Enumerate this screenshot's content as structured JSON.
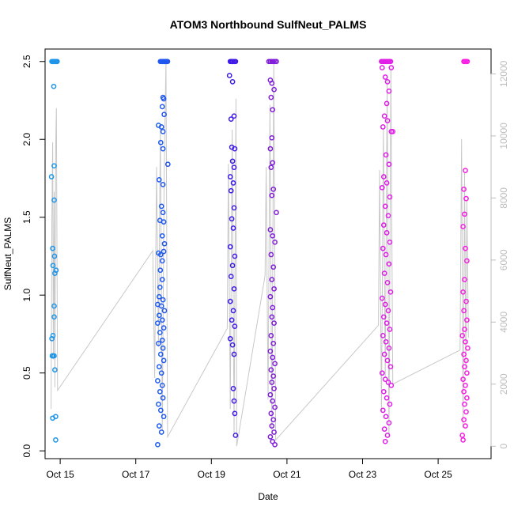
{
  "chart_data": {
    "type": "scatter",
    "title": "ATOM3 Northbound SulfNeut_PALMS",
    "xlabel": "Date",
    "ylabel": "SulfNeut_PALMS",
    "xlim": [
      14.6,
      26.4
    ],
    "ylim": [
      -0.05,
      2.58
    ],
    "y_ticks": [
      0.0,
      0.5,
      1.0,
      1.5,
      2.0,
      2.5
    ],
    "y_tick_labels": [
      "0.0",
      "0.5",
      "1.0",
      "1.5",
      "2.0",
      "2.5"
    ],
    "x_ticks": [
      15,
      17,
      19,
      21,
      23,
      25
    ],
    "x_tick_labels": [
      "Oct 15",
      "Oct 17",
      "Oct 19",
      "Oct 21",
      "Oct 23",
      "Oct 25"
    ],
    "y2_label": "",
    "y2_lim": [
      -400,
      12800
    ],
    "y2_ticks": [
      0,
      2000,
      4000,
      6000,
      8000,
      10000,
      12000
    ],
    "y2_tick_labels": [
      "0",
      "2000",
      "4000",
      "6000",
      "8000",
      "10000",
      "12000"
    ],
    "altitude_color": "#c8c8c8",
    "altitude_path": [
      [
        14.76,
        1200
      ],
      [
        14.78,
        7300
      ],
      [
        14.8,
        9800
      ],
      [
        14.82,
        2800
      ],
      [
        14.84,
        8200
      ],
      [
        14.86,
        1900
      ],
      [
        14.88,
        9600
      ],
      [
        14.9,
        10900
      ],
      [
        14.93,
        1800
      ],
      [
        17.45,
        6300
      ],
      [
        17.5,
        2200
      ],
      [
        17.55,
        9000
      ],
      [
        17.6,
        3200
      ],
      [
        17.65,
        10300
      ],
      [
        17.7,
        500
      ],
      [
        17.75,
        8800
      ],
      [
        17.8,
        12400
      ],
      [
        17.84,
        300
      ],
      [
        19.42,
        3800
      ],
      [
        19.45,
        9100
      ],
      [
        19.5,
        1200
      ],
      [
        19.55,
        10200
      ],
      [
        19.6,
        400
      ],
      [
        19.65,
        11200
      ],
      [
        19.67,
        0
      ],
      [
        20.42,
        5500
      ],
      [
        20.45,
        9000
      ],
      [
        20.5,
        1500
      ],
      [
        20.55,
        11000
      ],
      [
        20.6,
        300
      ],
      [
        20.65,
        12400
      ],
      [
        20.7,
        200
      ],
      [
        23.42,
        3900
      ],
      [
        23.45,
        8900
      ],
      [
        23.5,
        1100
      ],
      [
        23.55,
        10200
      ],
      [
        23.6,
        2200
      ],
      [
        23.65,
        11800
      ],
      [
        23.7,
        300
      ],
      [
        23.75,
        12200
      ],
      [
        23.8,
        2000
      ],
      [
        25.58,
        3100
      ],
      [
        25.62,
        9900
      ],
      [
        25.66,
        600
      ],
      [
        25.7,
        8800
      ],
      [
        25.73,
        2400
      ],
      [
        25.76,
        7900
      ],
      [
        25.8,
        3500
      ]
    ],
    "color_scale": {
      "stops": [
        [
          14.6,
          "#1e9be8"
        ],
        [
          17.6,
          "#1e5df0"
        ],
        [
          19.5,
          "#3b1be8"
        ],
        [
          20.5,
          "#7d1ed8"
        ],
        [
          23.6,
          "#e01ee8"
        ],
        [
          26.4,
          "#ff1ee0"
        ]
      ]
    },
    "points": [
      [
        14.78,
        2.5
      ],
      [
        14.8,
        2.5
      ],
      [
        14.82,
        2.5
      ],
      [
        14.84,
        2.5
      ],
      [
        14.86,
        2.5
      ],
      [
        14.88,
        2.5
      ],
      [
        14.9,
        2.5
      ],
      [
        14.92,
        2.5
      ],
      [
        14.83,
        2.34
      ],
      [
        14.77,
        1.76
      ],
      [
        14.84,
        1.83
      ],
      [
        14.84,
        1.61
      ],
      [
        14.8,
        1.3
      ],
      [
        14.85,
        1.25
      ],
      [
        14.81,
        1.19
      ],
      [
        14.89,
        1.16
      ],
      [
        14.86,
        1.14
      ],
      [
        14.84,
        0.93
      ],
      [
        14.84,
        0.86
      ],
      [
        14.78,
        0.72
      ],
      [
        14.81,
        0.74
      ],
      [
        14.79,
        0.61
      ],
      [
        14.81,
        0.61
      ],
      [
        14.84,
        0.61
      ],
      [
        14.86,
        0.52
      ],
      [
        14.8,
        0.21
      ],
      [
        14.88,
        0.22
      ],
      [
        14.88,
        0.07
      ],
      [
        17.65,
        2.5
      ],
      [
        17.68,
        2.5
      ],
      [
        17.7,
        2.5
      ],
      [
        17.72,
        2.5
      ],
      [
        17.74,
        2.5
      ],
      [
        17.76,
        2.5
      ],
      [
        17.78,
        2.5
      ],
      [
        17.8,
        2.5
      ],
      [
        17.82,
        2.5
      ],
      [
        17.84,
        2.5
      ],
      [
        17.72,
        2.27
      ],
      [
        17.74,
        2.26
      ],
      [
        17.7,
        2.21
      ],
      [
        17.75,
        2.16
      ],
      [
        17.6,
        2.09
      ],
      [
        17.68,
        2.08
      ],
      [
        17.72,
        2.05
      ],
      [
        17.66,
        1.98
      ],
      [
        17.72,
        1.94
      ],
      [
        17.85,
        1.84
      ],
      [
        17.62,
        1.74
      ],
      [
        17.72,
        1.71
      ],
      [
        17.68,
        1.57
      ],
      [
        17.72,
        1.53
      ],
      [
        17.64,
        1.48
      ],
      [
        17.74,
        1.47
      ],
      [
        17.7,
        1.38
      ],
      [
        17.76,
        1.33
      ],
      [
        17.74,
        1.28
      ],
      [
        17.6,
        1.27
      ],
      [
        17.66,
        1.26
      ],
      [
        17.7,
        1.22
      ],
      [
        17.65,
        1.16
      ],
      [
        17.7,
        1.1
      ],
      [
        17.64,
        1.05
      ],
      [
        17.62,
        0.99
      ],
      [
        17.72,
        0.97
      ],
      [
        17.58,
        0.94
      ],
      [
        17.68,
        0.93
      ],
      [
        17.76,
        0.9
      ],
      [
        17.62,
        0.87
      ],
      [
        17.7,
        0.84
      ],
      [
        17.58,
        0.82
      ],
      [
        17.74,
        0.79
      ],
      [
        17.64,
        0.76
      ],
      [
        17.7,
        0.71
      ],
      [
        17.6,
        0.69
      ],
      [
        17.72,
        0.66
      ],
      [
        17.66,
        0.62
      ],
      [
        17.74,
        0.58
      ],
      [
        17.62,
        0.54
      ],
      [
        17.68,
        0.5
      ],
      [
        17.58,
        0.45
      ],
      [
        17.7,
        0.42
      ],
      [
        17.64,
        0.38
      ],
      [
        17.72,
        0.34
      ],
      [
        17.6,
        0.3
      ],
      [
        17.66,
        0.26
      ],
      [
        17.74,
        0.22
      ],
      [
        17.62,
        0.16
      ],
      [
        17.68,
        0.12
      ],
      [
        17.58,
        0.04
      ],
      [
        19.5,
        2.5
      ],
      [
        19.53,
        2.5
      ],
      [
        19.55,
        2.5
      ],
      [
        19.57,
        2.5
      ],
      [
        19.6,
        2.5
      ],
      [
        19.62,
        2.5
      ],
      [
        19.64,
        2.5
      ],
      [
        19.48,
        2.41
      ],
      [
        19.56,
        2.37
      ],
      [
        19.52,
        2.13
      ],
      [
        19.6,
        2.15
      ],
      [
        19.54,
        1.95
      ],
      [
        19.62,
        1.94
      ],
      [
        19.56,
        1.86
      ],
      [
        19.6,
        1.82
      ],
      [
        19.5,
        1.76
      ],
      [
        19.58,
        1.72
      ],
      [
        19.52,
        1.67
      ],
      [
        19.6,
        1.56
      ],
      [
        19.54,
        1.49
      ],
      [
        19.58,
        1.43
      ],
      [
        19.5,
        1.31
      ],
      [
        19.62,
        1.25
      ],
      [
        19.56,
        1.19
      ],
      [
        19.52,
        1.12
      ],
      [
        19.6,
        1.04
      ],
      [
        19.5,
        0.96
      ],
      [
        19.58,
        0.9
      ],
      [
        19.54,
        0.84
      ],
      [
        19.62,
        0.8
      ],
      [
        19.5,
        0.72
      ],
      [
        19.56,
        0.68
      ],
      [
        19.6,
        0.62
      ],
      [
        19.58,
        0.4
      ],
      [
        19.6,
        0.32
      ],
      [
        19.62,
        0.24
      ],
      [
        19.64,
        0.1
      ],
      [
        20.52,
        2.5
      ],
      [
        20.56,
        2.5
      ],
      [
        20.6,
        2.5
      ],
      [
        20.64,
        2.5
      ],
      [
        20.68,
        2.5
      ],
      [
        20.72,
        2.5
      ],
      [
        20.56,
        2.38
      ],
      [
        20.6,
        2.36
      ],
      [
        20.66,
        2.32
      ],
      [
        20.58,
        2.27
      ],
      [
        20.62,
        2.19
      ],
      [
        20.6,
        2.01
      ],
      [
        20.56,
        1.94
      ],
      [
        20.62,
        1.85
      ],
      [
        20.58,
        1.82
      ],
      [
        20.64,
        1.68
      ],
      [
        20.6,
        1.64
      ],
      [
        20.72,
        1.53
      ],
      [
        20.56,
        1.42
      ],
      [
        20.62,
        1.38
      ],
      [
        20.68,
        1.34
      ],
      [
        20.58,
        1.26
      ],
      [
        20.64,
        1.18
      ],
      [
        20.6,
        1.1
      ],
      [
        20.66,
        1.04
      ],
      [
        20.56,
        0.99
      ],
      [
        20.62,
        0.92
      ],
      [
        20.6,
        0.86
      ],
      [
        20.66,
        0.82
      ],
      [
        20.58,
        0.74
      ],
      [
        20.64,
        0.69
      ],
      [
        20.56,
        0.64
      ],
      [
        20.62,
        0.6
      ],
      [
        20.68,
        0.56
      ],
      [
        20.58,
        0.52
      ],
      [
        20.64,
        0.48
      ],
      [
        20.6,
        0.44
      ],
      [
        20.66,
        0.4
      ],
      [
        20.56,
        0.36
      ],
      [
        20.62,
        0.32
      ],
      [
        20.68,
        0.28
      ],
      [
        20.58,
        0.24
      ],
      [
        20.64,
        0.2
      ],
      [
        20.6,
        0.16
      ],
      [
        20.66,
        0.12
      ],
      [
        20.56,
        0.09
      ],
      [
        20.62,
        0.06
      ],
      [
        20.68,
        0.04
      ],
      [
        23.5,
        2.5
      ],
      [
        23.53,
        2.5
      ],
      [
        23.56,
        2.5
      ],
      [
        23.59,
        2.5
      ],
      [
        23.62,
        2.5
      ],
      [
        23.65,
        2.5
      ],
      [
        23.68,
        2.5
      ],
      [
        23.71,
        2.5
      ],
      [
        23.74,
        2.5
      ],
      [
        23.52,
        2.46
      ],
      [
        23.76,
        2.46
      ],
      [
        23.6,
        2.4
      ],
      [
        23.66,
        2.37
      ],
      [
        23.7,
        2.31
      ],
      [
        23.64,
        2.23
      ],
      [
        23.58,
        2.15
      ],
      [
        23.66,
        2.12
      ],
      [
        23.54,
        2.08
      ],
      [
        23.76,
        2.05
      ],
      [
        23.8,
        2.05
      ],
      [
        23.62,
        1.9
      ],
      [
        23.7,
        1.84
      ],
      [
        23.56,
        1.76
      ],
      [
        23.64,
        1.72
      ],
      [
        23.52,
        1.69
      ],
      [
        23.72,
        1.63
      ],
      [
        23.6,
        1.57
      ],
      [
        23.68,
        1.51
      ],
      [
        23.56,
        1.45
      ],
      [
        23.64,
        1.4
      ],
      [
        23.72,
        1.34
      ],
      [
        23.54,
        1.3
      ],
      [
        23.62,
        1.26
      ],
      [
        23.7,
        1.2
      ],
      [
        23.58,
        1.14
      ],
      [
        23.66,
        1.08
      ],
      [
        23.74,
        1.02
      ],
      [
        23.52,
        0.98
      ],
      [
        23.6,
        0.94
      ],
      [
        23.68,
        0.9
      ],
      [
        23.56,
        0.86
      ],
      [
        23.64,
        0.82
      ],
      [
        23.72,
        0.78
      ],
      [
        23.54,
        0.74
      ],
      [
        23.62,
        0.7
      ],
      [
        23.7,
        0.66
      ],
      [
        23.58,
        0.62
      ],
      [
        23.66,
        0.58
      ],
      [
        23.74,
        0.54
      ],
      [
        23.52,
        0.5
      ],
      [
        23.6,
        0.46
      ],
      [
        23.68,
        0.44
      ],
      [
        23.76,
        0.42
      ],
      [
        23.56,
        0.38
      ],
      [
        23.64,
        0.34
      ],
      [
        23.72,
        0.3
      ],
      [
        23.54,
        0.26
      ],
      [
        23.62,
        0.22
      ],
      [
        23.7,
        0.18
      ],
      [
        23.58,
        0.14
      ],
      [
        23.66,
        0.1
      ],
      [
        23.6,
        0.06
      ],
      [
        25.68,
        2.5
      ],
      [
        25.71,
        2.5
      ],
      [
        25.74,
        2.5
      ],
      [
        25.77,
        2.5
      ],
      [
        25.72,
        1.8
      ],
      [
        25.68,
        1.68
      ],
      [
        25.74,
        1.62
      ],
      [
        25.7,
        1.52
      ],
      [
        25.66,
        1.44
      ],
      [
        25.72,
        1.3
      ],
      [
        25.76,
        1.22
      ],
      [
        25.7,
        1.1
      ],
      [
        25.66,
        1.02
      ],
      [
        25.74,
        0.96
      ],
      [
        25.68,
        0.9
      ],
      [
        25.76,
        0.84
      ],
      [
        25.7,
        0.78
      ],
      [
        25.64,
        0.74
      ],
      [
        25.72,
        0.7
      ],
      [
        25.78,
        0.66
      ],
      [
        25.68,
        0.62
      ],
      [
        25.74,
        0.58
      ],
      [
        25.7,
        0.54
      ],
      [
        25.76,
        0.5
      ],
      [
        25.66,
        0.46
      ],
      [
        25.72,
        0.42
      ],
      [
        25.68,
        0.38
      ],
      [
        25.76,
        0.34
      ],
      [
        25.7,
        0.3
      ],
      [
        25.74,
        0.25
      ],
      [
        25.68,
        0.2
      ],
      [
        25.72,
        0.16
      ],
      [
        25.64,
        0.1
      ],
      [
        25.66,
        0.07
      ]
    ]
  }
}
